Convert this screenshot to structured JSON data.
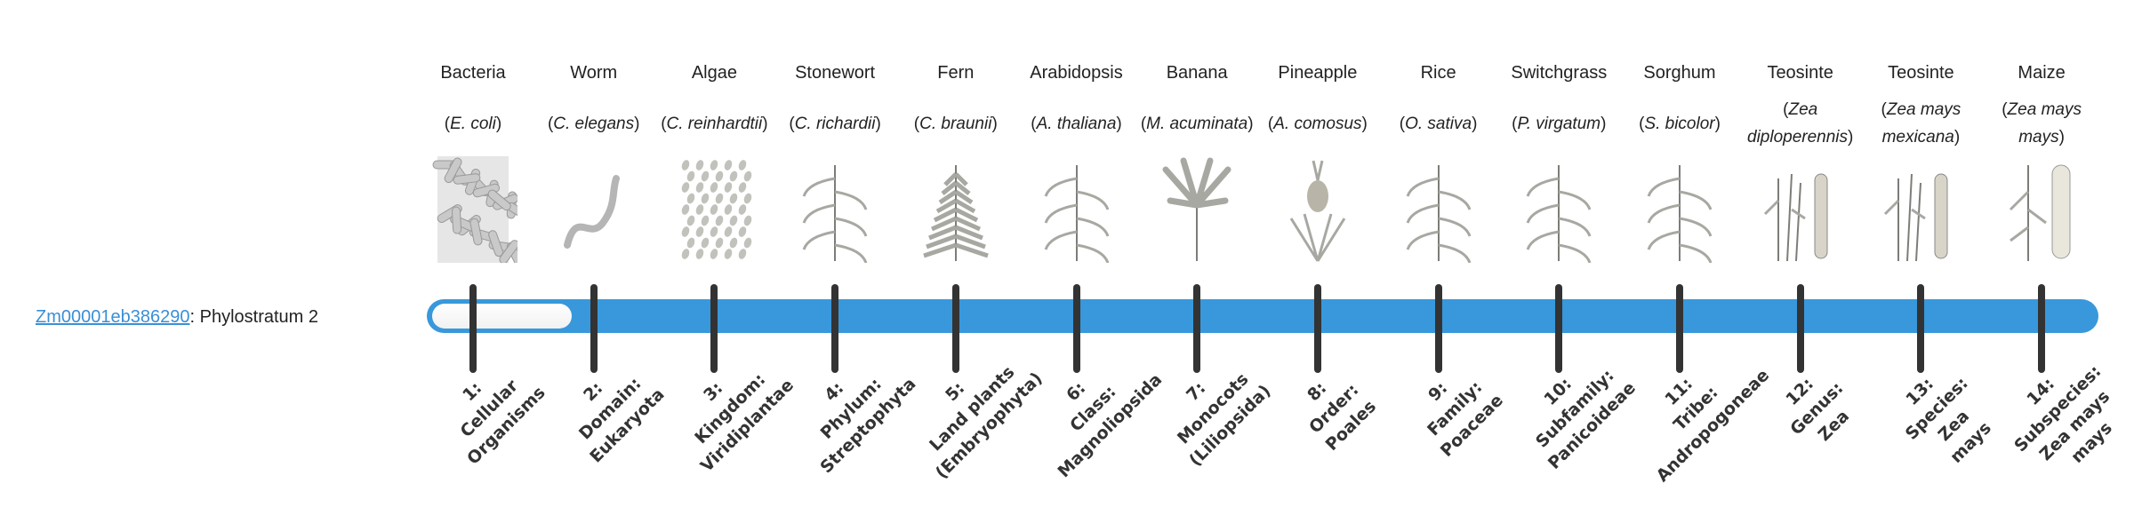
{
  "gene": {
    "id": "Zm00001eb386290",
    "separator": ":",
    "phylostratum_label": " Phylostratum 2"
  },
  "colors": {
    "bar": "#3898db",
    "link": "#3a8fd6",
    "tick": "#333333"
  },
  "phylostratum_value": 2,
  "organisms": [
    {
      "name": "Bacteria",
      "species": "E. coli",
      "icon": "bacteria-illustration"
    },
    {
      "name": "Worm",
      "species": "C. elegans",
      "icon": "worm-illustration"
    },
    {
      "name": "Algae",
      "species": "C. reinhardtii",
      "icon": "algae-illustration"
    },
    {
      "name": "Stonewort",
      "species": "C. richardii",
      "icon": "stonewort-illustration"
    },
    {
      "name": "Fern",
      "species": "C. braunii",
      "icon": "fern-illustration"
    },
    {
      "name": "Arabidopsis",
      "species": "A. thaliana",
      "icon": "arabidopsis-illustration"
    },
    {
      "name": "Banana",
      "species": "M. acuminata",
      "icon": "banana-illustration"
    },
    {
      "name": "Pineapple",
      "species": "A. comosus",
      "icon": "pineapple-illustration"
    },
    {
      "name": "Rice",
      "species": "O. sativa",
      "icon": "rice-illustration"
    },
    {
      "name": "Switchgrass",
      "species": "P. virgatum",
      "icon": "switchgrass-illustration"
    },
    {
      "name": "Sorghum",
      "species": "S. bicolor",
      "icon": "sorghum-illustration"
    },
    {
      "name": "Teosinte",
      "species": "Zea diploperennis",
      "icon": "teosinte-illustration"
    },
    {
      "name": "Teosinte",
      "species": "Zea mays mexicana",
      "icon": "teosinte-illustration"
    },
    {
      "name": "Maize",
      "species": "Zea mays mays",
      "icon": "maize-illustration"
    }
  ],
  "strata": [
    {
      "lines": [
        "1:",
        "Cellular",
        "Organisms"
      ]
    },
    {
      "lines": [
        "2:",
        "Domain:",
        "Eukaryota"
      ]
    },
    {
      "lines": [
        "3:",
        "Kingdom:",
        "Viridiplantae"
      ]
    },
    {
      "lines": [
        "4:",
        "Phylum:",
        "Streptophyta"
      ]
    },
    {
      "lines": [
        "5:",
        "Land plants",
        "(Embryophyta)"
      ]
    },
    {
      "lines": [
        "6:",
        "Class:",
        "Magnoliopsida"
      ]
    },
    {
      "lines": [
        "7:",
        "Monocots",
        "(Liliopsida)"
      ]
    },
    {
      "lines": [
        "8:",
        "Order:",
        "Poales"
      ]
    },
    {
      "lines": [
        "9:",
        "Family:",
        "Poaceae"
      ]
    },
    {
      "lines": [
        "10:",
        "Subfamily:",
        "Panicoideae"
      ]
    },
    {
      "lines": [
        "11:",
        "Tribe:",
        "Andropogoneae"
      ]
    },
    {
      "lines": [
        "12:",
        "Genus:",
        "Zea"
      ]
    },
    {
      "lines": [
        "13:",
        "Species:",
        "Zea",
        "mays"
      ]
    },
    {
      "lines": [
        "14:",
        "Subspecies:",
        "Zea mays",
        "mays"
      ]
    }
  ]
}
